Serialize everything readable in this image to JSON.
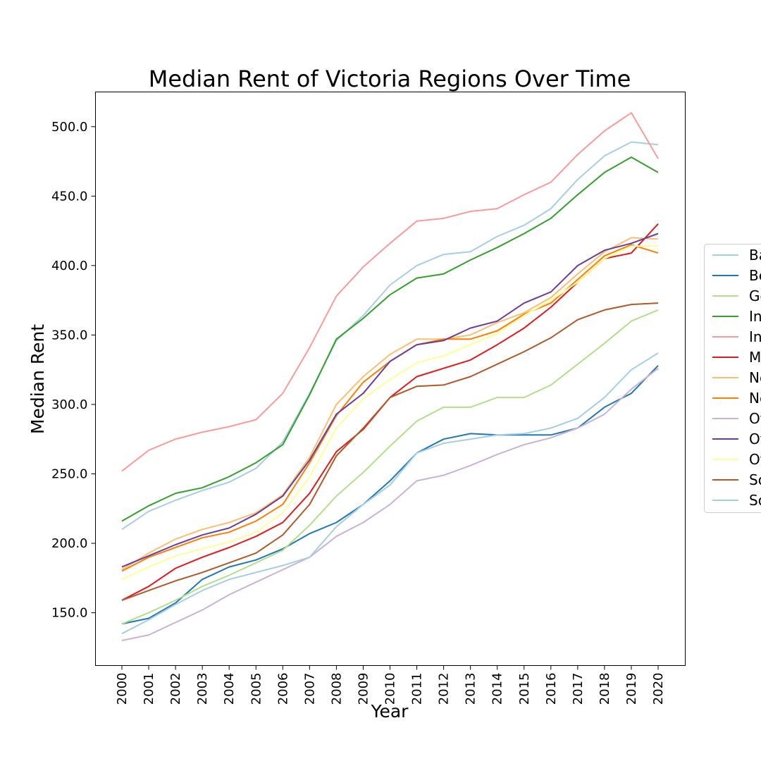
{
  "chart_data": {
    "type": "line",
    "title": "Median Rent of Victoria Regions Over Time",
    "xlabel": "Year",
    "ylabel": "Median Rent",
    "ylim": [
      112,
      525
    ],
    "grid": false,
    "legend_placement": "right, partially cut off",
    "x": [
      "2000",
      "2001",
      "2002",
      "2003",
      "2004",
      "2005",
      "2006",
      "2007",
      "2008",
      "2009",
      "2010",
      "2011",
      "2012",
      "2013",
      "2014",
      "2015",
      "2016",
      "2017",
      "2018",
      "2019",
      "2020"
    ],
    "y_ticks": [
      "150.0",
      "200.0",
      "250.0",
      "300.0",
      "350.0",
      "400.0",
      "450.0",
      "500.0"
    ],
    "series": [
      {
        "name": "Ba",
        "color": "#a6cee3",
        "values": [
          210,
          223,
          231,
          238,
          244,
          254,
          273,
          308,
          346,
          364,
          386,
          400,
          408,
          410,
          421,
          429,
          441,
          462,
          479,
          489,
          487
        ]
      },
      {
        "name": "Be",
        "color": "#1f78b4",
        "values": [
          142,
          146,
          157,
          174,
          183,
          188,
          196,
          207,
          215,
          228,
          245,
          265,
          275,
          279,
          278,
          278,
          278,
          283,
          298,
          308,
          328
        ]
      },
      {
        "name": "Ge",
        "color": "#b2df8a",
        "values": [
          142,
          150,
          159,
          169,
          177,
          186,
          195,
          213,
          234,
          251,
          270,
          288,
          298,
          298,
          305,
          305,
          314,
          329,
          344,
          360,
          368
        ]
      },
      {
        "name": "In",
        "color": "#33a02c",
        "values": [
          216,
          227,
          236,
          240,
          248,
          258,
          271,
          307,
          347,
          362,
          379,
          391,
          394,
          404,
          413,
          423,
          434,
          451,
          467,
          478,
          467
        ]
      },
      {
        "name": "In",
        "color": "#fb9a99",
        "values": [
          252,
          267,
          275,
          280,
          284,
          289,
          308,
          341,
          378,
          399,
          416,
          432,
          434,
          439,
          441,
          451,
          460,
          480,
          497,
          510,
          477
        ]
      },
      {
        "name": "M",
        "color": "#e31a1c",
        "values": [
          159,
          169,
          182,
          190,
          197,
          205,
          215,
          236,
          266,
          282,
          305,
          320,
          326,
          332,
          343,
          355,
          370,
          388,
          405,
          409,
          430
        ]
      },
      {
        "name": "Ne",
        "color": "#fdbf6f",
        "values": [
          181,
          193,
          203,
          210,
          215,
          222,
          235,
          262,
          300,
          320,
          336,
          347,
          347,
          350,
          359,
          366,
          377,
          394,
          410,
          420,
          419
        ]
      },
      {
        "name": "Ne",
        "color": "#ff7f00",
        "values": [
          180,
          190,
          197,
          204,
          208,
          216,
          228,
          258,
          292,
          316,
          331,
          343,
          347,
          347,
          353,
          365,
          373,
          390,
          407,
          415,
          409
        ]
      },
      {
        "name": "Ot",
        "color": "#cab2d6",
        "values": [
          130,
          134,
          143,
          152,
          163,
          172,
          181,
          190,
          205,
          215,
          228,
          245,
          249,
          256,
          264,
          271,
          276,
          283,
          293,
          311,
          326
        ]
      },
      {
        "name": "Ot",
        "color": "#6a3d9a",
        "values": [
          183,
          191,
          199,
          206,
          211,
          221,
          234,
          260,
          293,
          308,
          331,
          343,
          346,
          355,
          360,
          373,
          381,
          400,
          411,
          416,
          423
        ]
      },
      {
        "name": "Ot",
        "color": "#ffff99",
        "values": [
          174,
          183,
          191,
          196,
          201,
          208,
          222,
          248,
          283,
          304,
          318,
          330,
          335,
          343,
          351,
          364,
          375,
          388,
          405,
          414,
          414
        ]
      },
      {
        "name": "So",
        "color": "#b15928",
        "values": [
          159,
          166,
          173,
          179,
          186,
          193,
          206,
          228,
          263,
          283,
          305,
          313,
          314,
          320,
          329,
          338,
          348,
          361,
          368,
          372,
          373
        ]
      },
      {
        "name": "So",
        "color": "#a6cee3",
        "values": [
          135,
          145,
          156,
          166,
          174,
          179,
          184,
          190,
          212,
          228,
          242,
          265,
          272,
          275,
          278,
          279,
          283,
          290,
          305,
          325,
          337
        ]
      }
    ]
  }
}
